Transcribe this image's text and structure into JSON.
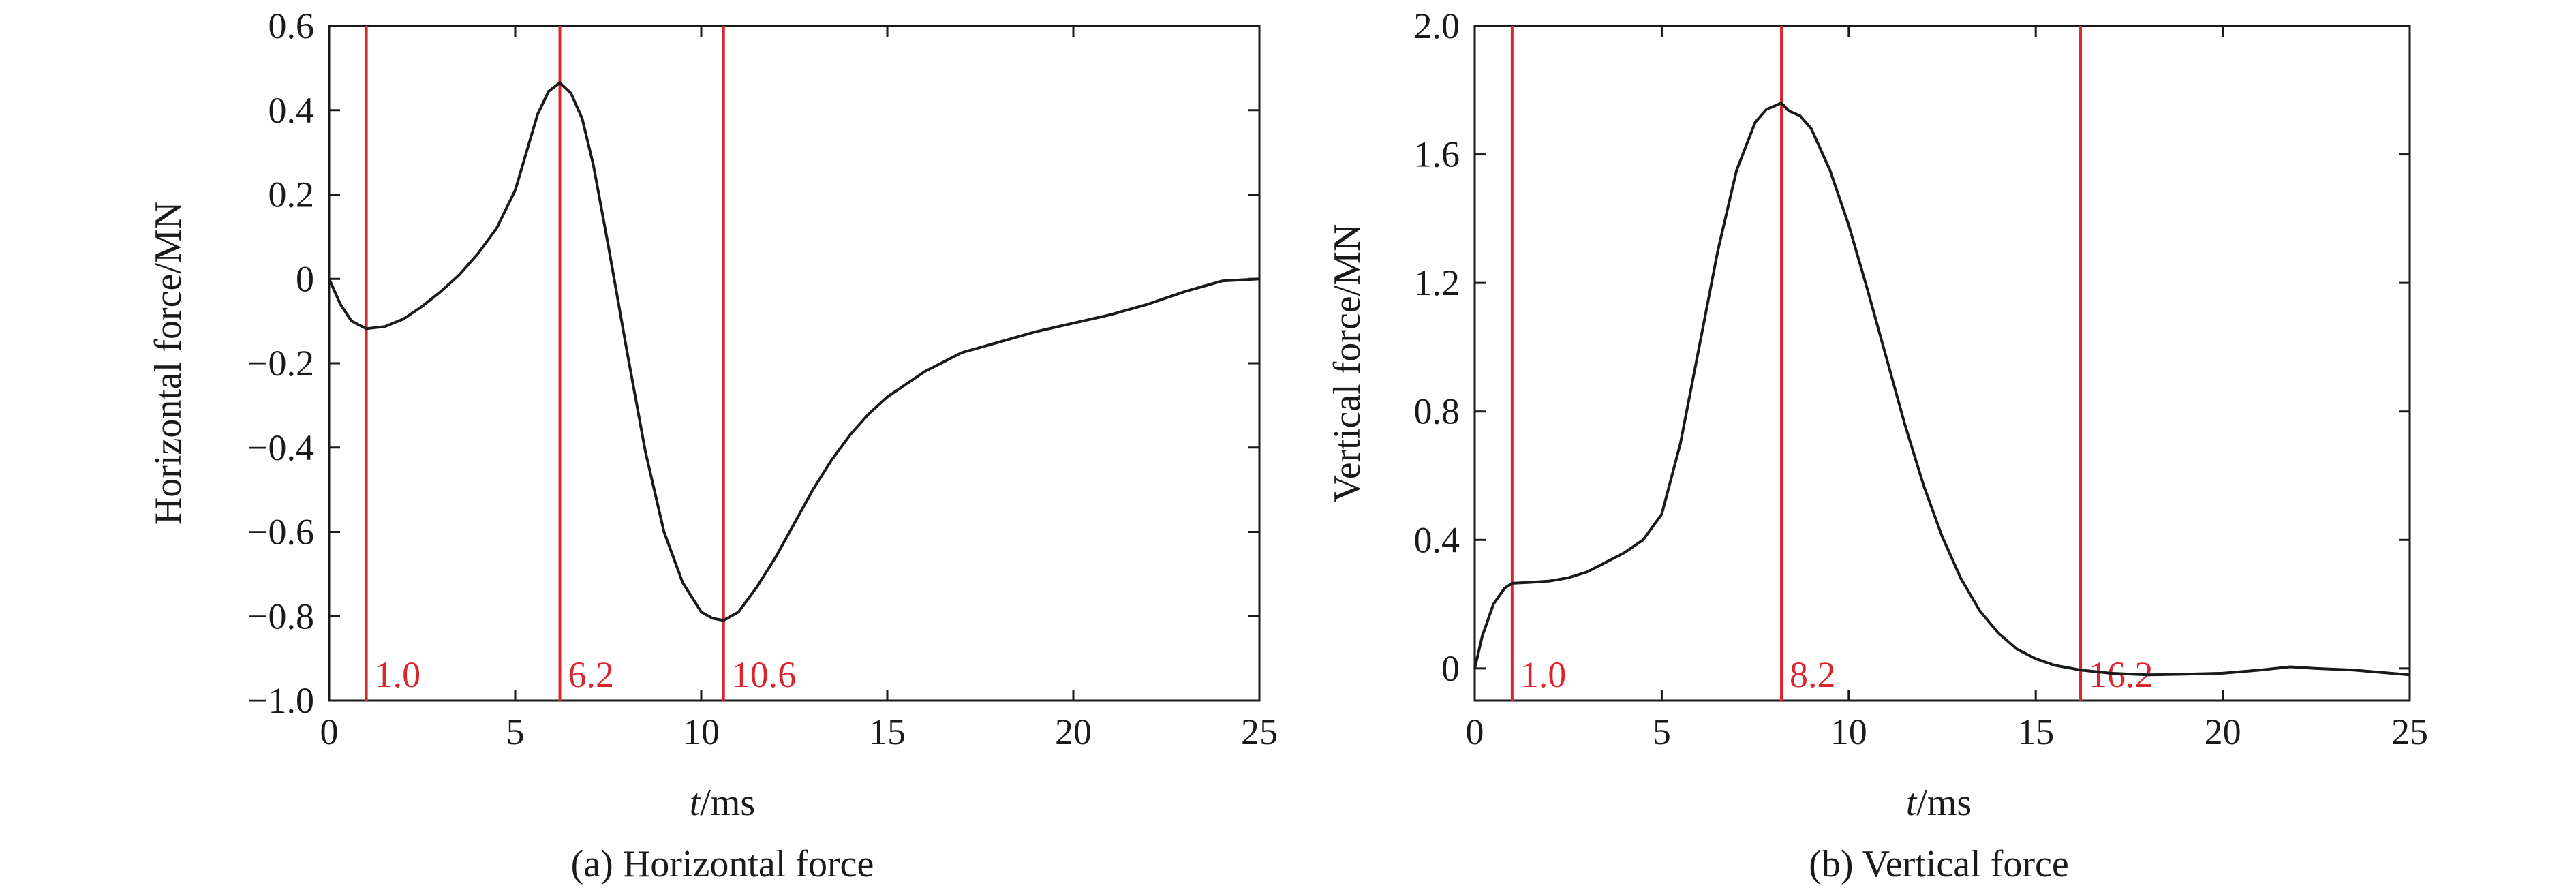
{
  "figure": {
    "panel_a_caption": "(a) Horizontal force",
    "panel_b_caption": "(b) Vertical force"
  },
  "colors": {
    "curve": "#1a1a1a",
    "marker": "#d9272e",
    "axis": "#1a1a1a"
  },
  "chart_data": [
    {
      "type": "line",
      "title": "",
      "caption": "(a) Horizontal force",
      "xlabel_italic": "t",
      "xlabel_unit": "/ms",
      "ylabel": "Horizontal force/MN",
      "xlim": [
        0,
        25
      ],
      "ylim": [
        -1.0,
        0.6
      ],
      "xticks": [
        0,
        5,
        10,
        15,
        20,
        25
      ],
      "xtick_labels": [
        "0",
        "5",
        "10",
        "15",
        "20",
        "25"
      ],
      "yticks": [
        -1.0,
        -0.8,
        -0.6,
        -0.4,
        -0.2,
        0,
        0.2,
        0.4,
        0.6
      ],
      "ytick_labels": [
        "−1.0",
        "−0.8",
        "−0.6",
        "−0.4",
        "−0.2",
        "0",
        "0.2",
        "0.4",
        "0.6"
      ],
      "grid": false,
      "markers": [
        {
          "x": 1.0,
          "label": "1.0"
        },
        {
          "x": 6.2,
          "label": "6.2"
        },
        {
          "x": 10.6,
          "label": "10.6"
        }
      ],
      "series": [
        {
          "x": [
            0,
            0.3,
            0.6,
            1.0,
            1.5,
            2.0,
            2.5,
            3.0,
            3.5,
            4.0,
            4.5,
            5.0,
            5.3,
            5.6,
            5.9,
            6.2,
            6.5,
            6.8,
            7.1,
            7.5,
            8.0,
            8.5,
            9.0,
            9.5,
            10.0,
            10.3,
            10.6,
            11.0,
            11.5,
            12.0,
            12.5,
            13.0,
            13.5,
            14.0,
            14.5,
            15.0,
            16.0,
            17.0,
            18.0,
            19.0,
            20.0,
            21.0,
            22.0,
            23.0,
            24.0,
            25.0
          ],
          "y": [
            0,
            -0.06,
            -0.1,
            -0.118,
            -0.113,
            -0.095,
            -0.065,
            -0.03,
            0.01,
            0.06,
            0.12,
            0.21,
            0.3,
            0.39,
            0.445,
            0.465,
            0.44,
            0.38,
            0.27,
            0.08,
            -0.17,
            -0.41,
            -0.6,
            -0.72,
            -0.79,
            -0.805,
            -0.81,
            -0.79,
            -0.73,
            -0.66,
            -0.58,
            -0.5,
            -0.43,
            -0.37,
            -0.32,
            -0.28,
            -0.22,
            -0.175,
            -0.15,
            -0.125,
            -0.105,
            -0.085,
            -0.06,
            -0.03,
            -0.005,
            0
          ]
        }
      ]
    },
    {
      "type": "line",
      "title": "",
      "caption": "(b) Vertical force",
      "xlabel_italic": "t",
      "xlabel_unit": "/ms",
      "ylabel": "Vertical force/MN",
      "xlim": [
        0,
        25
      ],
      "ylim": [
        -0.1,
        2.0
      ],
      "xticks": [
        0,
        5,
        10,
        15,
        20,
        25
      ],
      "xtick_labels": [
        "0",
        "5",
        "10",
        "15",
        "20",
        "25"
      ],
      "yticks": [
        0,
        0.4,
        0.8,
        1.2,
        1.6,
        2.0
      ],
      "ytick_labels": [
        "0",
        "0.4",
        "0.8",
        "1.2",
        "1.6",
        "2.0"
      ],
      "grid": false,
      "markers": [
        {
          "x": 1.0,
          "label": "1.0"
        },
        {
          "x": 8.2,
          "label": "8.2"
        },
        {
          "x": 16.2,
          "label": "16.2"
        }
      ],
      "series": [
        {
          "x": [
            0,
            0.2,
            0.5,
            0.8,
            1.0,
            1.5,
            2.0,
            2.5,
            3.0,
            3.5,
            4.0,
            4.5,
            5.0,
            5.5,
            6.0,
            6.5,
            7.0,
            7.5,
            7.8,
            8.0,
            8.2,
            8.4,
            8.7,
            9.0,
            9.5,
            10.0,
            10.5,
            11.0,
            11.5,
            12.0,
            12.5,
            13.0,
            13.5,
            14.0,
            14.5,
            15.0,
            15.5,
            16.2,
            17.0,
            18.0,
            19.0,
            20.0,
            21.0,
            21.8,
            22.5,
            23.5,
            25.0
          ],
          "y": [
            0,
            0.1,
            0.2,
            0.25,
            0.265,
            0.268,
            0.272,
            0.282,
            0.3,
            0.33,
            0.36,
            0.4,
            0.48,
            0.7,
            1.0,
            1.3,
            1.55,
            1.7,
            1.74,
            1.75,
            1.76,
            1.735,
            1.72,
            1.68,
            1.55,
            1.38,
            1.18,
            0.97,
            0.76,
            0.57,
            0.41,
            0.28,
            0.18,
            0.11,
            0.06,
            0.03,
            0.01,
            -0.005,
            -0.015,
            -0.02,
            -0.018,
            -0.015,
            -0.005,
            0.005,
            0.0,
            -0.005,
            -0.02
          ]
        }
      ]
    }
  ]
}
